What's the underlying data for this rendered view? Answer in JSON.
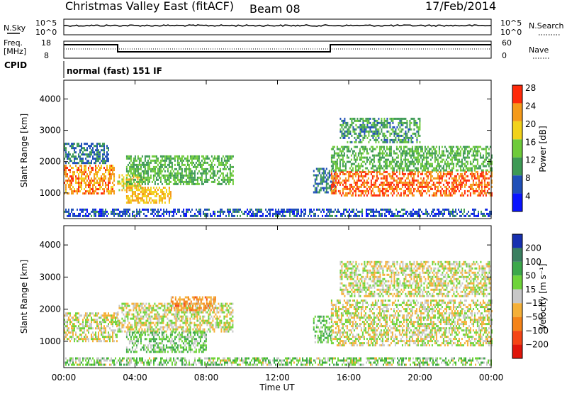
{
  "header": {
    "station": "Christmas Valley East (fitACF)",
    "beam": "Beam 08",
    "date": "17/Feb/2014"
  },
  "sky_panel": {
    "left_label": "N.Sky",
    "right_label": "N.Search",
    "left_ticks": [
      "10^5",
      "10^0"
    ],
    "right_ticks": [
      "10^5",
      "10^0"
    ]
  },
  "freq_panel": {
    "left_label_1": "Freq.",
    "left_label_2": "[MHz]",
    "right_label": "Nave",
    "left_ticks": [
      "18",
      "8"
    ],
    "right_ticks": [
      "60",
      "0"
    ]
  },
  "cpid": {
    "label": "CPID",
    "value": "normal (fast) 151 IF"
  },
  "axes": {
    "ylabel": "Slant Range [km]",
    "xlabel": "Time UT",
    "y_ticks": [
      "1000",
      "2000",
      "3000",
      "4000"
    ],
    "x_ticks": [
      "00:00",
      "04:00",
      "08:00",
      "12:00",
      "16:00",
      "20:00",
      "00:00"
    ]
  },
  "power_scale": {
    "label": "Power [dB]",
    "ticks": [
      "4",
      "8",
      "12",
      "16",
      "20",
      "24",
      "28"
    ],
    "colors": [
      "#0a14ff",
      "#1f4fb8",
      "#3d9a55",
      "#6ecb3a",
      "#f2d21b",
      "#f59a1a",
      "#ff2a0a"
    ]
  },
  "velocity_scale": {
    "label": "Velocity [m s⁻¹]",
    "ticks": [
      "200",
      "100",
      "50",
      "15",
      "−15",
      "−50",
      "−100",
      "−200"
    ],
    "colors": [
      "#1730b0",
      "#3a7f60",
      "#3ca84a",
      "#6fd43a",
      "#c8c8c8",
      "#f5b038",
      "#f58318",
      "#f54515",
      "#e0150a"
    ]
  },
  "chart_data": [
    {
      "type": "heatmap",
      "title": "Power",
      "ylabel": "Slant Range [km]",
      "xlabel": "Time UT",
      "xlim": [
        0,
        24
      ],
      "ylim": [
        180,
        4600
      ],
      "zlabel": "Power [dB]",
      "zlim": [
        0,
        30
      ],
      "regions": [
        {
          "t": [
            0.0,
            2.8
          ],
          "r": [
            1000,
            1900
          ],
          "v": 24
        },
        {
          "t": [
            0.0,
            2.5
          ],
          "r": [
            1950,
            2600
          ],
          "v": 10
        },
        {
          "t": [
            3.0,
            4.5
          ],
          "r": [
            1100,
            1600
          ],
          "v": 20
        },
        {
          "t": [
            3.5,
            9.5
          ],
          "r": [
            1300,
            2200
          ],
          "v": 14
        },
        {
          "t": [
            3.5,
            6.0
          ],
          "r": [
            700,
            1200
          ],
          "v": 22
        },
        {
          "t": [
            14.0,
            15.2
          ],
          "r": [
            1000,
            1800
          ],
          "v": 10
        },
        {
          "t": [
            15.0,
            24.0
          ],
          "r": [
            900,
            1700
          ],
          "v": 26
        },
        {
          "t": [
            15.0,
            24.0
          ],
          "r": [
            1700,
            2500
          ],
          "v": 14
        },
        {
          "t": [
            15.5,
            20.0
          ],
          "r": [
            2600,
            3400
          ],
          "v": 12
        },
        {
          "t": [
            0.0,
            24.0
          ],
          "r": [
            250,
            500
          ],
          "v": 8
        }
      ]
    },
    {
      "type": "heatmap",
      "title": "Velocity",
      "ylabel": "Slant Range [km]",
      "xlabel": "Time UT",
      "xlim": [
        0,
        24
      ],
      "ylim": [
        180,
        4600
      ],
      "zlabel": "Velocity [m s⁻¹]",
      "zlim": [
        -200,
        200
      ],
      "regions": [
        {
          "t": [
            0.0,
            3.0
          ],
          "r": [
            1000,
            1900
          ],
          "v": 0
        },
        {
          "t": [
            3.0,
            9.5
          ],
          "r": [
            1300,
            2200
          ],
          "v": 0
        },
        {
          "t": [
            3.5,
            8.0
          ],
          "r": [
            700,
            1300
          ],
          "v": 40
        },
        {
          "t": [
            6.0,
            8.5
          ],
          "r": [
            2000,
            2400
          ],
          "v": -60
        },
        {
          "t": [
            14.0,
            15.0
          ],
          "r": [
            1000,
            1800
          ],
          "v": 40
        },
        {
          "t": [
            15.0,
            24.0
          ],
          "r": [
            900,
            2300
          ],
          "v": 0
        },
        {
          "t": [
            15.5,
            24.0
          ],
          "r": [
            2400,
            3500
          ],
          "v": 0
        },
        {
          "t": [
            0.0,
            24.0
          ],
          "r": [
            250,
            500
          ],
          "v": 30
        }
      ]
    }
  ]
}
